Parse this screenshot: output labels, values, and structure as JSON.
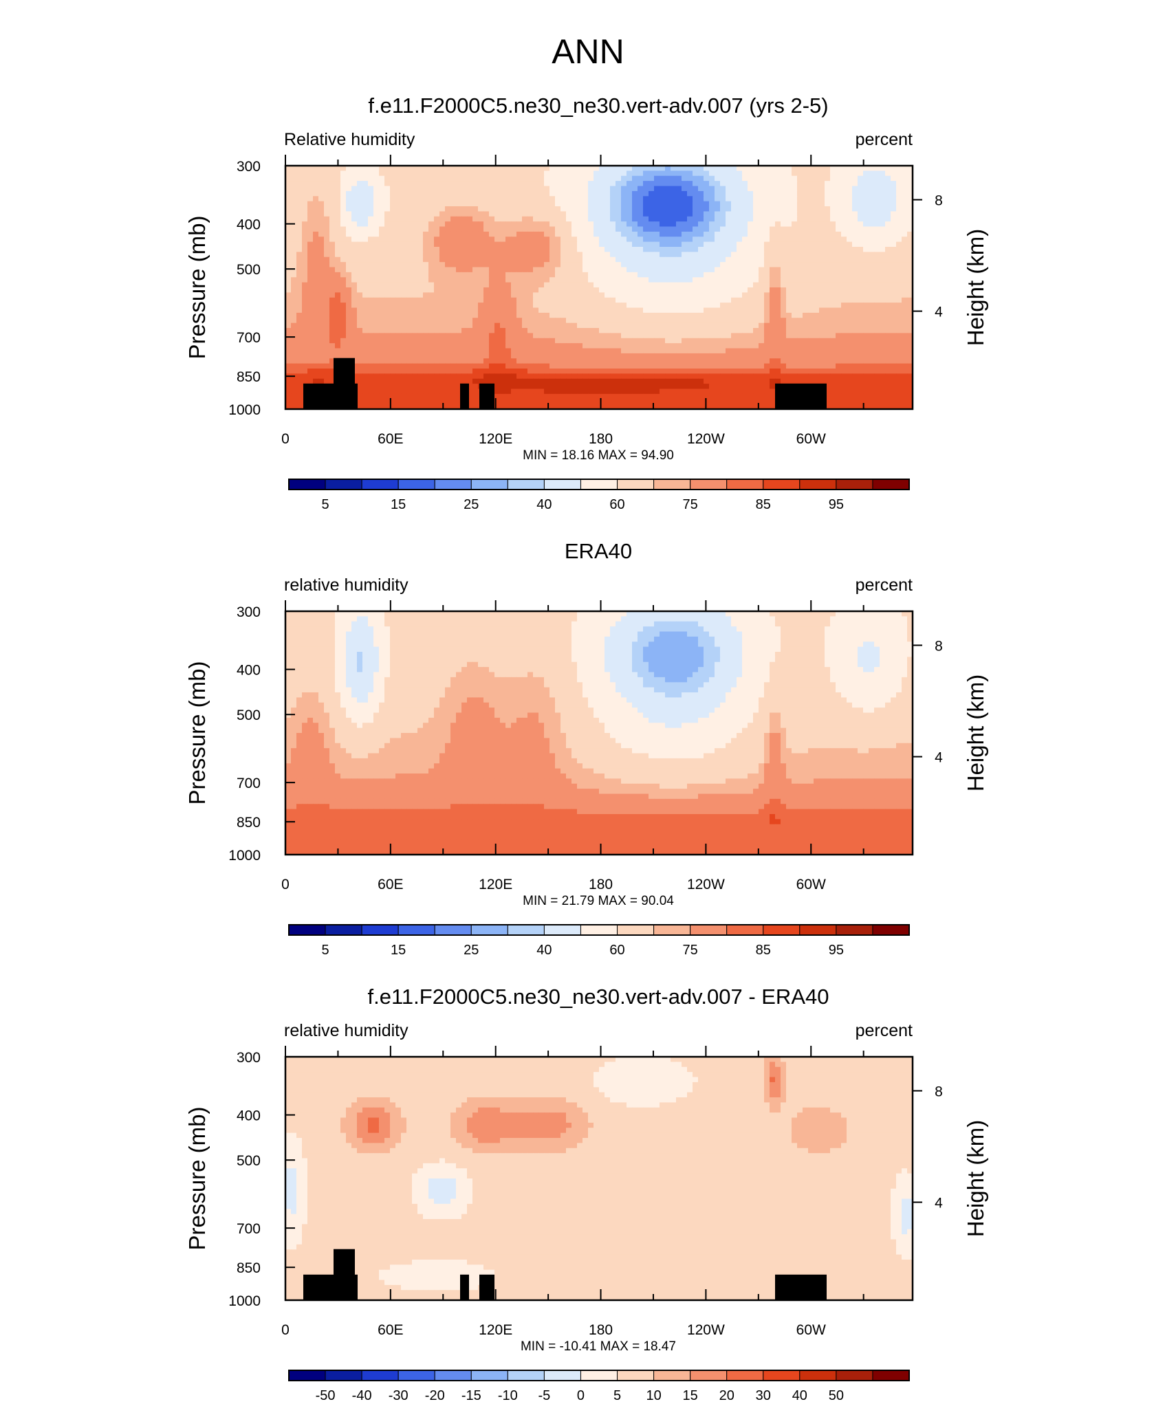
{
  "page": {
    "title": "ANN"
  },
  "colors": {
    "rh": [
      "#00007f",
      "#0a1ea0",
      "#1e3cd2",
      "#3c64e6",
      "#648cf0",
      "#8cb4f6",
      "#b4d2f8",
      "#dceafa",
      "#fff0e4",
      "#fcd8bf",
      "#f8b696",
      "#f4906e",
      "#ef6a44",
      "#e6461e",
      "#cc300c",
      "#a8200a",
      "#7f0000"
    ],
    "diff": [
      "#00007f",
      "#0a1ea0",
      "#1e3cd2",
      "#3c64e6",
      "#648cf0",
      "#8cb4f6",
      "#b4d2f8",
      "#dceafa",
      "#fff0e4",
      "#fcd8bf",
      "#f8b696",
      "#f4906e",
      "#ef6a44",
      "#e6461e",
      "#cc300c",
      "#a8200a",
      "#7f0000"
    ]
  },
  "chart_data": [
    {
      "type": "heatmap",
      "title": "f.e11.F2000C5.ne30_ne30.vert-adv.007 (yrs 2-5)",
      "left_label": "Relative humidity",
      "right_label": "percent",
      "ylabel": "Pressure (mb)",
      "ylabel_right": "Height (km)",
      "yticks": [
        "300",
        "400",
        "500",
        "700",
        "850",
        "1000"
      ],
      "yticks_right": [
        "8",
        "4"
      ],
      "xticks": [
        "0",
        "60E",
        "120E",
        "180",
        "120W",
        "60W"
      ],
      "stats": "MIN =  18.16  MAX =  94.90",
      "colorbar": {
        "levels": [
          "5",
          "15",
          "25",
          "40",
          "60",
          "75",
          "85",
          "95"
        ]
      },
      "fields": {
        "min": 18.16,
        "max": 94.9
      },
      "topography": true
    },
    {
      "type": "heatmap",
      "title": "ERA40",
      "left_label": "relative humidity",
      "right_label": "percent",
      "ylabel": "Pressure (mb)",
      "ylabel_right": "Height (km)",
      "yticks": [
        "300",
        "400",
        "500",
        "700",
        "850",
        "1000"
      ],
      "yticks_right": [
        "8",
        "4"
      ],
      "xticks": [
        "0",
        "60E",
        "120E",
        "180",
        "120W",
        "60W"
      ],
      "stats": "MIN =  21.79  MAX =  90.04",
      "colorbar": {
        "levels": [
          "5",
          "15",
          "25",
          "40",
          "60",
          "75",
          "85",
          "95"
        ]
      },
      "fields": {
        "min": 21.79,
        "max": 90.04
      },
      "topography": false
    },
    {
      "type": "heatmap",
      "title": "f.e11.F2000C5.ne30_ne30.vert-adv.007 - ERA40",
      "left_label": "relative humidity",
      "right_label": "percent",
      "ylabel": "Pressure (mb)",
      "ylabel_right": "Height (km)",
      "yticks": [
        "300",
        "400",
        "500",
        "700",
        "850",
        "1000"
      ],
      "yticks_right": [
        "8",
        "4"
      ],
      "xticks": [
        "0",
        "60E",
        "120E",
        "180",
        "120W",
        "60W"
      ],
      "stats": "MIN = -10.41  MAX =  18.47",
      "colorbar": {
        "levels": [
          "-50",
          "-40",
          "-30",
          "-20",
          "-15",
          "-10",
          "-5",
          "0",
          "5",
          "10",
          "15",
          "20",
          "30",
          "40",
          "50"
        ]
      },
      "fields": {
        "min": -10.41,
        "max": 18.47
      },
      "topography": true
    }
  ]
}
